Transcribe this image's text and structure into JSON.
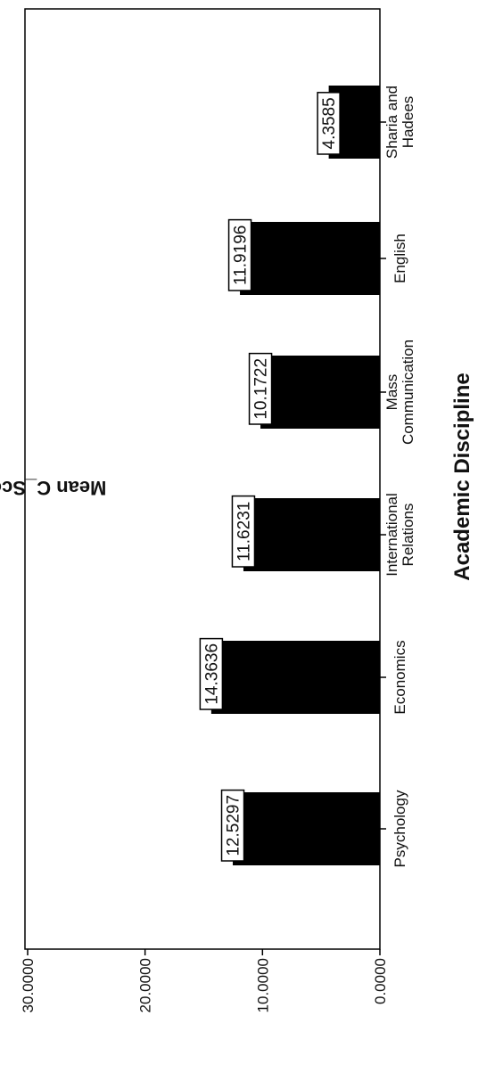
{
  "chart_data": {
    "type": "bar",
    "categories": [
      "Psychology",
      "Economics",
      "International Relations",
      "Mass Communication",
      "English",
      "Sharia and Hadees"
    ],
    "category_lines": [
      [
        "Psychology"
      ],
      [
        "Economics"
      ],
      [
        "International",
        "Relations"
      ],
      [
        "Mass",
        "Communication"
      ],
      [
        "English"
      ],
      [
        "Sharia and",
        "Hadees"
      ]
    ],
    "values": [
      12.5297,
      14.3636,
      11.6231,
      10.1722,
      11.9196,
      4.3585
    ],
    "value_labels": [
      "12.5297",
      "14.3636",
      "11.6231",
      "10.1722",
      "11.9196",
      "4.3585"
    ],
    "xlabel": "Academic Discipline",
    "ylabel": "Mean C_Score (MJC)",
    "ylim": [
      0,
      30
    ],
    "yticks": [
      0,
      10,
      20,
      30
    ],
    "ytick_labels": [
      "0.0000",
      "10.0000",
      "20.0000",
      "30.0000"
    ],
    "orientation": "rotated-90",
    "grid": false,
    "bar_color": "#000000",
    "label_box_color": "#ffffff"
  }
}
